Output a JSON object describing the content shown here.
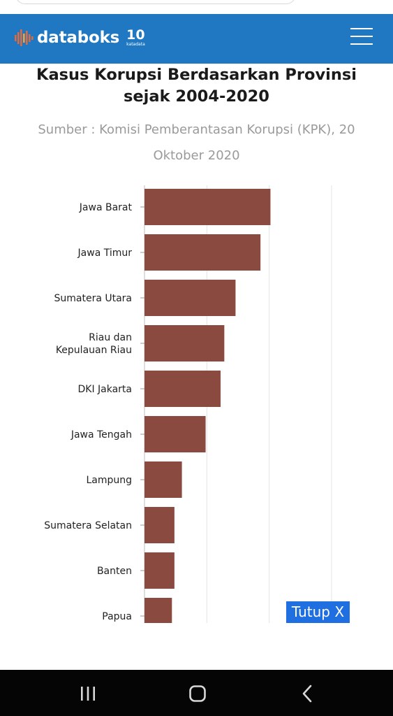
{
  "header": {
    "logo_text": "databoks",
    "badge_number": "10",
    "badge_sub": "katadata",
    "background_color": "#1f78c1"
  },
  "chart_data": {
    "type": "bar",
    "orientation": "horizontal",
    "title": "Kasus Korupsi Berdasarkan Provinsi sejak 2004-2020",
    "title_lines": [
      "Kasus Korupsi Berdasarkan Provinsi",
      "sejak 2004-2020"
    ],
    "source": "Sumber : Komisi Pemberantasan Korupsi (KPK), 20 Oktober 2020",
    "source_lines": [
      "Sumber : Komisi Pemberantasan Korupsi (KPK), 20",
      "Oktober 2020"
    ],
    "categories": [
      "Jawa Barat",
      "Jawa Timur",
      "Sumatera Utara",
      "Riau dan Kepulauan Riau",
      "DKI Jakarta",
      "Jawa Tengah",
      "Lampung",
      "Sumatera Selatan",
      "Banten",
      "Papua"
    ],
    "values": [
      101,
      93,
      73,
      64,
      61,
      49,
      30,
      24,
      24,
      22
    ],
    "xlim": [
      0,
      150
    ],
    "grid": true,
    "bar_color": "#8b4a3f"
  },
  "close_button": {
    "label": "Tutup X",
    "color": "#1f6fe0"
  },
  "navbar": {
    "recent_icon": "recent-apps-icon",
    "home_icon": "home-icon",
    "back_icon": "back-icon"
  }
}
